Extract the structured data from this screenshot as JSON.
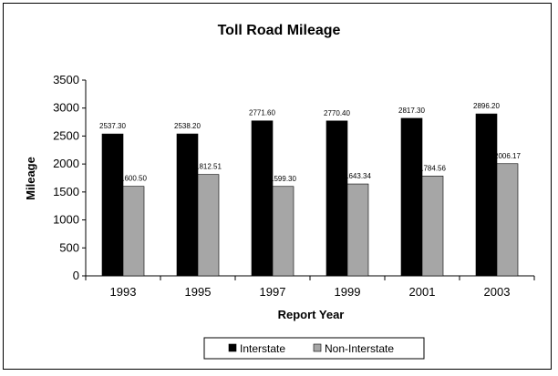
{
  "chart_data": {
    "type": "bar",
    "title": "Toll Road Mileage",
    "xlabel": "Report Year",
    "ylabel": "Mileage",
    "categories": [
      "1993",
      "1995",
      "1997",
      "1999",
      "2001",
      "2003"
    ],
    "series": [
      {
        "name": "Interstate",
        "color": "#000000",
        "values": [
          2537.3,
          2538.2,
          2771.6,
          2770.4,
          2817.3,
          2896.2
        ],
        "labels": [
          "2537.30",
          "2538.20",
          "2771.60",
          "2770.40",
          "2817.30",
          "2896.20"
        ]
      },
      {
        "name": "Non-Interstate",
        "color": "#a6a6a6",
        "values": [
          1600.5,
          1812.51,
          1599.3,
          1643.34,
          1784.56,
          2006.17
        ],
        "labels": [
          "1600.50",
          "1812.51",
          "1599.30",
          "1643.34",
          "1784.56",
          "2006.17"
        ]
      }
    ],
    "ylim": [
      0,
      3500
    ],
    "yticks": [
      0,
      500,
      1000,
      1500,
      2000,
      2500,
      3000,
      3500
    ],
    "grid": false,
    "legend_position": "bottom"
  }
}
